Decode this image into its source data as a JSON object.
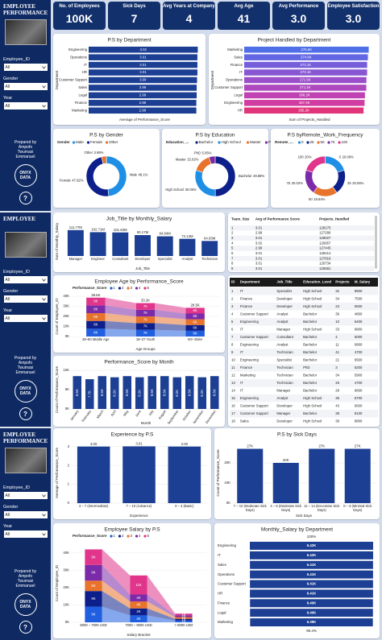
{
  "kpis": [
    {
      "label": "No. of Employees",
      "value": "100K"
    },
    {
      "label": "Sick Days",
      "value": 7
    },
    {
      "label": "Avg Years at Company",
      "value": 4
    },
    {
      "label": "Avg Age",
      "value": 41
    },
    {
      "label": "Avg Performance",
      "value": "3.0"
    },
    {
      "label": "Employee Satisfaction",
      "value": "3.0"
    }
  ],
  "sidebars": [
    {
      "title": "EMPLOYEE PERFORMANCE",
      "filters": [
        {
          "label": "Employee_ID",
          "value": "All"
        },
        {
          "label": "Gender",
          "value": "All"
        },
        {
          "label": "Year",
          "value": "All"
        }
      ],
      "prepared": "Prepared by Ampofo Twumasi Emmanuel",
      "logo": "ONYX DATA",
      "help": "?"
    },
    {
      "title": "EMPLOYEE",
      "filters": [
        {
          "label": "Employee_ID",
          "value": "All"
        },
        {
          "label": "Gender",
          "value": "All"
        },
        {
          "label": "Year",
          "value": "All"
        }
      ],
      "prepared": "Prepared by Ampofo Twumasi Emmanuel",
      "logo": "ONYX DATA",
      "help": "?"
    },
    {
      "title": "EMPLOYEE PERFORMANCE",
      "filters": [
        {
          "label": "Employee_ID",
          "value": "All"
        },
        {
          "label": "Gender",
          "value": "All"
        },
        {
          "label": "Year",
          "value": "All"
        }
      ],
      "prepared": "Prepared by Ampofo Twumasi Emmanuel",
      "logo": "ONYX DATA",
      "help": "?"
    }
  ],
  "chart_data": [
    {
      "type": "hbar",
      "title": "P.S by Department",
      "categories": [
        "Engineering",
        "Operations",
        "IT",
        "HR",
        "Customer Support",
        "Sales",
        "Legal",
        "Finance",
        "Marketing"
      ],
      "values": [
        3.02,
        3.01,
        3.01,
        3.01,
        3.0,
        2.99,
        2.99,
        2.98,
        2.98
      ],
      "value_labels": [
        "3.02",
        "3.01",
        "3.01",
        "3.01",
        "3.00",
        "2.99",
        "2.99",
        "2.98",
        "2.98"
      ],
      "color": "#1c3f94",
      "xlim": [
        0,
        3.1
      ],
      "xlabel": "Average of Performance_Score",
      "ylabel": "Department"
    },
    {
      "type": "hbar",
      "title": "Project Handled by Department",
      "categories": [
        "Marketing",
        "Sales",
        "Finance",
        "IT",
        "Operations",
        "Customer Support",
        "Legal",
        "Engineering",
        "HR"
      ],
      "values": [
        276600,
        274800,
        273100,
        273100,
        271500,
        271200,
        268200,
        267400,
        265200
      ],
      "value_labels": [
        "276.6K",
        "274.8K",
        "273.1K",
        "273.1K",
        "271.5K",
        "271.2K",
        "268.2K",
        "267.4K",
        "265.2K"
      ],
      "colors": [
        "#4f6fe8",
        "#6366e2",
        "#765edb",
        "#8856d3",
        "#9b4fca",
        "#ad48bf",
        "#bf41b2",
        "#d13ca2",
        "#e0357a"
      ],
      "xlim": [
        0,
        290000
      ],
      "xlabel": "Sum of Projects_Handled",
      "ylabel": "Department"
    },
    {
      "type": "donut",
      "title": "P.S by Gender",
      "legend_title": "Gender",
      "categories": [
        "Male",
        "Female",
        "Other"
      ],
      "values": [
        48.1,
        47.92,
        3.98
      ],
      "value_labels": [
        "48.1%",
        "47.92%",
        "3.98%"
      ],
      "colors": [
        "#1f8fe6",
        "#0d1f8a",
        "#e8732c"
      ]
    },
    {
      "type": "donut",
      "title": "P.S by Education",
      "legend_title": "Education_...",
      "categories": [
        "Bachelor",
        "High School",
        "Master",
        "PhD"
      ],
      "values": [
        49.88,
        30.05,
        15.02,
        5.05
      ],
      "value_labels": [
        "49.88%",
        "30.05%",
        "15.02%",
        "5.05%"
      ],
      "colors": [
        "#0d1f8a",
        "#1f8fe6",
        "#e8732c",
        "#7b2aa8"
      ]
    },
    {
      "type": "donut",
      "title": "P.S byRemote_Work_Frequency",
      "legend_title": "Remote_...",
      "categories": [
        "0",
        "25",
        "50",
        "75",
        "100"
      ],
      "values": [
        20.08,
        20.06,
        19.84,
        20.02,
        20.0
      ],
      "value_labels": [
        "20.08%",
        "20.06%",
        "19.84%",
        "20.02%",
        "20%"
      ],
      "colors": [
        "#1f8fe6",
        "#0d1f8a",
        "#e8732c",
        "#7b2aa8",
        "#e0358b"
      ]
    },
    {
      "type": "bar",
      "title": "Job_Title by Monthly_Salary",
      "categories": [
        "Manager",
        "Engineer",
        "Consultant",
        "Developer",
        "Specialist",
        "Analyst",
        "Technician"
      ],
      "values": [
        111770000,
        102710000,
        101630000,
        90170000,
        84840000,
        74130000,
        64830000
      ],
      "value_labels": [
        "111.77M",
        "102.71M",
        "101.63M",
        "90.17M",
        "84.84M",
        "74.13M",
        "64.83M"
      ],
      "color": "#1c3f94",
      "ylim": [
        0,
        125000000
      ],
      "xlabel": "Job_Title",
      "ylabel": "Sum of Monthly_Salary"
    },
    {
      "type": "stacked",
      "title": "Employee Age by Performance_Score",
      "legend_title": "Performance_Score",
      "categories": [
        "28–50 Middle Age",
        "18–27 Youth",
        "50+ Elder"
      ],
      "series": [
        {
          "name": "1",
          "color": "#1f5fe0",
          "values": [
            7720,
            6640,
            5700
          ],
          "value_labels": [
            "8K",
            "7K",
            "6K"
          ]
        },
        {
          "name": "2",
          "color": "#0d1f8a",
          "values": [
            7720,
            6640,
            5700
          ],
          "value_labels": [
            "8K",
            "7K",
            "6K"
          ]
        },
        {
          "name": "3",
          "color": "#e8732c",
          "values": [
            7720,
            6640,
            5700
          ],
          "value_labels": [
            "8K",
            "7K",
            "6K"
          ]
        },
        {
          "name": "4",
          "color": "#7b2aa8",
          "values": [
            7720,
            6640,
            5700
          ],
          "value_labels": [
            "8K",
            "7K",
            "6K"
          ]
        },
        {
          "name": "5",
          "color": "#e0358b",
          "values": [
            7720,
            6640,
            5700
          ],
          "value_labels": [
            "8K",
            "7K",
            "6K"
          ]
        }
      ],
      "total_labels": [
        "38.6K",
        "33.2K",
        "28.5K"
      ],
      "ylim": [
        0,
        40000
      ],
      "yticks": [
        {
          "value": 0,
          "label": "0K"
        },
        {
          "value": 10000,
          "label": "10K"
        },
        {
          "value": 20000,
          "label": "20K"
        },
        {
          "value": 30000,
          "label": "30K"
        },
        {
          "value": 40000,
          "label": "40K"
        }
      ],
      "xlabel": "Age Groups",
      "ylabel": "Count of Employee_ID"
    },
    {
      "type": "bar",
      "title": "Performance_Score by Month",
      "categories": [
        "January",
        "February",
        "March",
        "April",
        "May",
        "June",
        "July",
        "August",
        "September",
        "October",
        "November",
        "December"
      ],
      "values": [
        8500,
        7700,
        8500,
        8200,
        8500,
        8200,
        8500,
        8500,
        8200,
        8500,
        8200,
        8500
      ],
      "value_labels": [
        "8.5K",
        "7.7K",
        "8.5K",
        "8.2K",
        "8.5K",
        "8.2K",
        "8.5K",
        "8.5K",
        "8.2K",
        "8.5K",
        "8.2K",
        "8.5K"
      ],
      "color": "#1c3f94",
      "ylim": [
        0,
        10000
      ],
      "yticks": [
        {
          "value": 0,
          "label": "0K"
        },
        {
          "value": 5000,
          "label": "5K"
        },
        {
          "value": 10000,
          "label": "10K"
        }
      ],
      "xlabel": "Month",
      "ylabel": "Count of Performance_Score"
    },
    {
      "type": "bar",
      "title": "Experience by P.S",
      "categories": [
        "4 – 7 (Intermediate)",
        "7 – 10 (Advance)",
        "0 – 4 (Basic)"
      ],
      "values": [
        3.0,
        3.01,
        3.0
      ],
      "value_labels": [
        "3.00",
        "3.01",
        "3.00"
      ],
      "color": "#1c3f94",
      "ylim": [
        0,
        3.2
      ],
      "yticks": [
        0,
        1,
        2,
        3
      ],
      "xlabel": "Experience",
      "ylabel": "Average of Performance_Score"
    },
    {
      "type": "bar",
      "title": "P.S by Sick Days",
      "categories": [
        "7 – 10 (Moderate Sick Days)",
        "4 – 6 (Moderate Sick Days)",
        "11 – 14 (Excessive Sick Days)",
        "0 – 3 (Minimal Sick Days)"
      ],
      "values": [
        27000,
        20000,
        27000,
        27000
      ],
      "value_labels": [
        "27K",
        "20K",
        "27K",
        "27K"
      ],
      "color": "#1c3f94",
      "ylim": [
        0,
        30000
      ],
      "yticks": [
        {
          "value": 0,
          "label": "0K"
        },
        {
          "value": 10000,
          "label": "10K"
        },
        {
          "value": 20000,
          "label": "20K"
        }
      ],
      "xlabel": "Sick Days",
      "ylabel": "Count of Performance_Score"
    },
    {
      "type": "stacked",
      "title": "Employee Salary by P.S",
      "legend_title": "Performance_Score",
      "categories": [
        "5000 – 7000 USD",
        "7000 – 9000 USD",
        "> 9000 USD"
      ],
      "series": [
        {
          "name": "1",
          "color": "#1f5fe0",
          "values": [
            9000,
            4000,
            1000
          ],
          "value_labels": [
            "9K",
            "4K",
            "1K"
          ]
        },
        {
          "name": "2",
          "color": "#0d1f8a",
          "values": [
            9000,
            4000,
            1000
          ],
          "value_labels": [
            "9K",
            "4K",
            "1K"
          ]
        },
        {
          "name": "3",
          "color": "#e8732c",
          "values": [
            6000,
            4000,
            1000
          ],
          "value_labels": [
            "6K",
            "4K",
            "1K"
          ]
        },
        {
          "name": "4",
          "color": "#7b2aa8",
          "values": [
            9000,
            4000,
            1000
          ],
          "value_labels": [
            "9K",
            "4K",
            "1K"
          ]
        },
        {
          "name": "5",
          "color": "#e0358b",
          "values": [
            9000,
            11000,
            1000
          ],
          "value_labels": [
            "9K",
            "11K",
            "1K"
          ]
        }
      ],
      "ylim": [
        0,
        45000
      ],
      "yticks": [
        {
          "value": 0,
          "label": "0K"
        },
        {
          "value": 10000,
          "label": "10K"
        },
        {
          "value": 20000,
          "label": "20K"
        },
        {
          "value": 30000,
          "label": "30K"
        },
        {
          "value": 40000,
          "label": "40K"
        }
      ],
      "xlabel": "Salary Bracket",
      "ylabel": "Count of Employee_ID"
    },
    {
      "type": "funnel",
      "title": "Monthly_Salary by Department",
      "categories": [
        "Engineering",
        "IT",
        "Sales",
        "Operations",
        "Customer Support",
        "HR",
        "Finance",
        "Legal",
        "Marketing"
      ],
      "values": [
        6420,
        6420,
        6410,
        6410,
        6410,
        6410,
        6400,
        6400,
        6390
      ],
      "value_labels": [
        "6.42K",
        "6.42K",
        "6.41K",
        "6.41K",
        "6.41K",
        "6.41K",
        "6.40K",
        "6.40K",
        "6.39K"
      ],
      "color": "#1c3f94",
      "annotations": [
        "100%",
        "99.4%"
      ]
    }
  ],
  "tables": [
    {
      "columns": [
        "Team_Size",
        "Avg of Performance Score",
        "Projects_Handled"
      ],
      "rows": [
        [
          1,
          3.01,
          128175
        ],
        [
          2,
          2.99,
          127286
        ],
        [
          3,
          3.01,
          128027
        ],
        [
          4,
          3.02,
          126957
        ],
        [
          5,
          2.99,
          127445
        ],
        [
          6,
          3.01,
          128414
        ],
        [
          7,
          3.01,
          127816
        ],
        [
          8,
          3.01,
          126734
        ],
        [
          9,
          3.01,
          126581
        ]
      ]
    },
    {
      "columns": [
        "ID",
        "Department",
        "Job_Title",
        "Education_Level",
        "Projects",
        "M_Salary"
      ],
      "rows": [
        [
          1,
          "IT",
          "Specialist",
          "High School",
          32,
          9500
        ],
        [
          2,
          "Finance",
          "Developer",
          "High School",
          34,
          7500
        ],
        [
          3,
          "Finance",
          "Developer",
          "High School",
          23,
          5500
        ],
        [
          4,
          "Customer Support",
          "Analyst",
          "Bachelor",
          36,
          4800
        ],
        [
          5,
          "Engineering",
          "Analyst",
          "Bachelor",
          10,
          6400
        ],
        [
          6,
          "IT",
          "Manager",
          "High School",
          33,
          9800
        ],
        [
          7,
          "Customer Support",
          "Consultant",
          "Bachelor",
          4,
          5000
        ],
        [
          8,
          "Engineering",
          "Analyst",
          "Bachelor",
          11,
          6800
        ],
        [
          9,
          "IT",
          "Technician",
          "Bachelor",
          41,
          4700
        ],
        [
          10,
          "Engineering",
          "Specialist",
          "Bachelor",
          21,
          6500
        ],
        [
          11,
          "Finance",
          "Technician",
          "PhD",
          3,
          5200
        ],
        [
          12,
          "Marketing",
          "Technician",
          "Bachelor",
          34,
          5900
        ],
        [
          13,
          "IT",
          "Technician",
          "Bachelor",
          25,
          4700
        ],
        [
          14,
          "IT",
          "Manager",
          "Bachelor",
          28,
          9600
        ],
        [
          15,
          "Engineering",
          "Analyst",
          "High School",
          35,
          6700
        ],
        [
          16,
          "Customer Support",
          "Developer",
          "High School",
          43,
          6600
        ],
        [
          17,
          "Customer Support",
          "Manager",
          "Bachelor",
          38,
          8100
        ],
        [
          18,
          "Sales",
          "Developer",
          "High School",
          39,
          8800
        ]
      ]
    }
  ]
}
